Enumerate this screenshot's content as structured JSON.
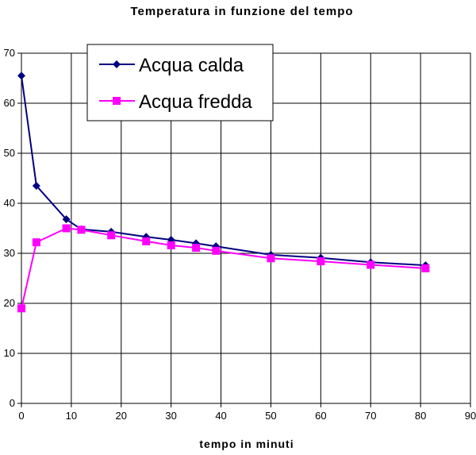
{
  "chart_data": {
    "type": "line",
    "title": "Temperatura in funzione del tempo",
    "xlabel": "tempo in minuti",
    "ylabel": "",
    "xlim": [
      0,
      90
    ],
    "ylim": [
      0,
      70
    ],
    "x_ticks": [
      0,
      10,
      20,
      30,
      40,
      50,
      60,
      70,
      80,
      90
    ],
    "y_ticks": [
      0,
      10,
      20,
      30,
      40,
      50,
      60,
      70
    ],
    "grid": true,
    "legend_position": "top-left",
    "series": [
      {
        "name": "Acqua calda",
        "color": "#000080",
        "marker": "diamond",
        "x": [
          0,
          3,
          9,
          12,
          18,
          25,
          30,
          35,
          39,
          50,
          60,
          70,
          81
        ],
        "y": [
          65.5,
          43.5,
          36.8,
          34.8,
          34.3,
          33.3,
          32.7,
          32.0,
          31.4,
          29.7,
          29.1,
          28.2,
          27.6
        ]
      },
      {
        "name": "Acqua fredda",
        "color": "#FF00FF",
        "marker": "square",
        "x": [
          0,
          3,
          9,
          12,
          18,
          25,
          30,
          35,
          39,
          50,
          60,
          70,
          81
        ],
        "y": [
          19.0,
          32.2,
          35.0,
          34.7,
          33.6,
          32.4,
          31.6,
          31.1,
          30.5,
          29.0,
          28.4,
          27.7,
          27.0
        ]
      }
    ]
  }
}
